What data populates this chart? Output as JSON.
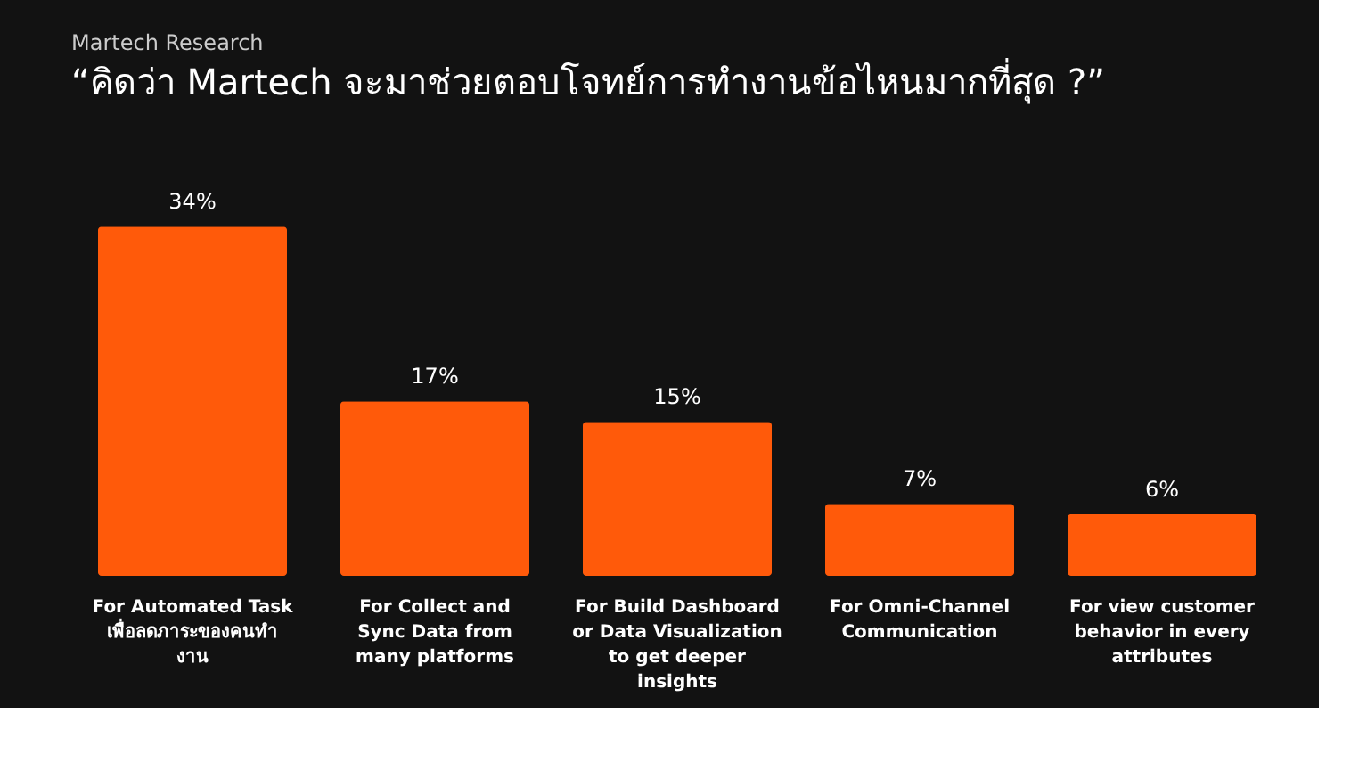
{
  "chart_data": {
    "type": "bar",
    "title": "Martech Research",
    "subtitle": "“คิดว่า Martech จะมาช่วยตอบโจทย์การทำงานข้อไหนมากที่สุด ?”",
    "categories": [
      "For Automated Task\nเพื่อลดภาระของคนทำ\nงาน",
      "For Collect and\nSync Data from\nmany platforms",
      "For Build Dashboard\nor Data Visualization\nto get deeper\ninsights",
      "For Omni-Channel\nCommunication",
      "For view customer\nbehavior in every\nattributes"
    ],
    "values": [
      34,
      17,
      15,
      7,
      6
    ],
    "value_labels": [
      "34%",
      "17%",
      "15%",
      "7%",
      "6%"
    ],
    "color": "#ff5a0a",
    "grid": false
  }
}
